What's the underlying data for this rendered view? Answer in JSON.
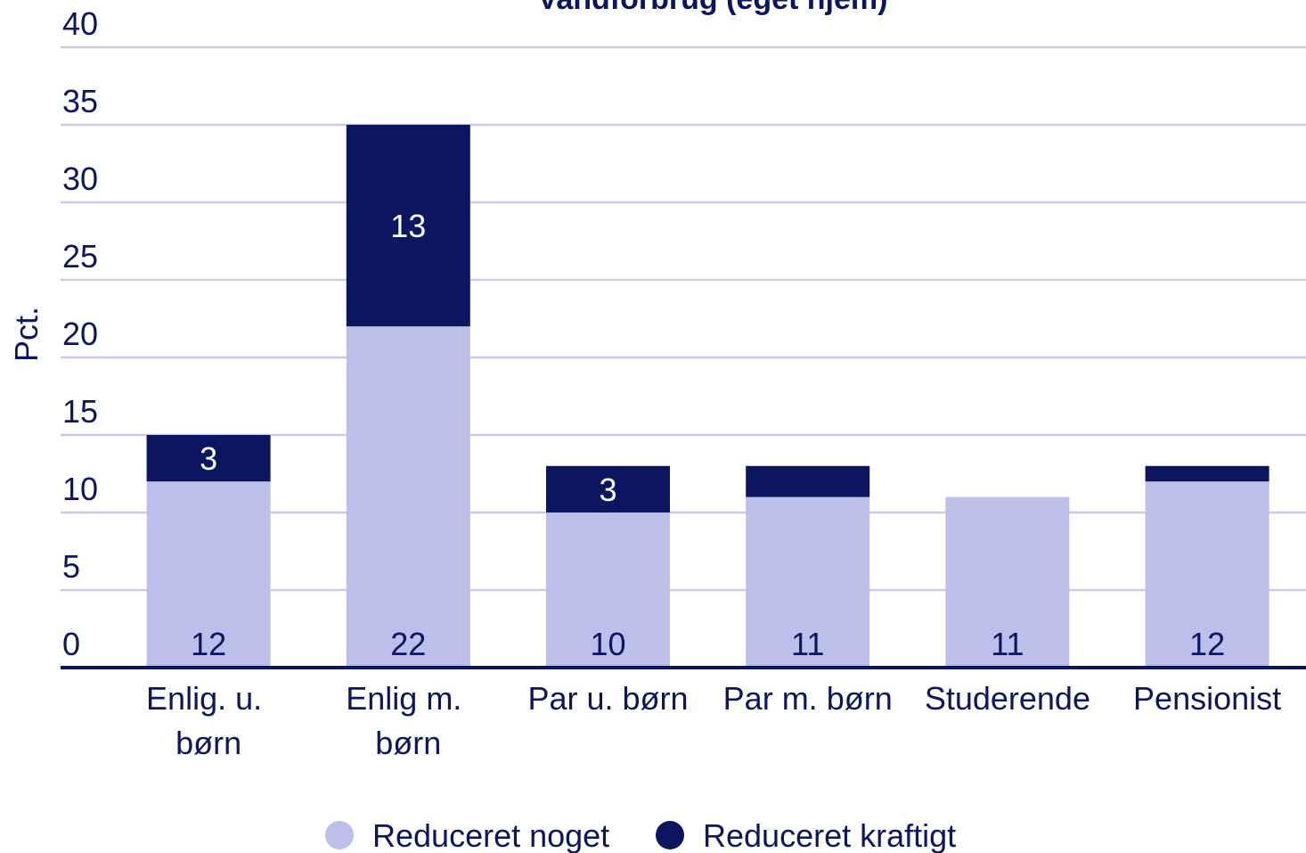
{
  "chart_data": {
    "type": "stacked_bar",
    "title": "Vandforbrug (eget hjem)",
    "ylabel": "Pct.",
    "categories": [
      "Enlig. u. børn",
      "Enlig m. børn",
      "Par u. børn",
      "Par m. børn",
      "Studerende",
      "Pensionist"
    ],
    "series": [
      {
        "name": "Reduceret noget",
        "color": "#bcbfea",
        "values": [
          12,
          22,
          10,
          11,
          11,
          12
        ]
      },
      {
        "name": "Reduceret kraftigt",
        "color": "#0b1560",
        "values": [
          3,
          13,
          3,
          2,
          0,
          1
        ]
      }
    ],
    "ylim": [
      0,
      40
    ],
    "yticks": [
      0,
      5,
      10,
      15,
      20,
      25,
      30,
      35,
      40
    ],
    "grid": true,
    "legend": "bottom"
  }
}
